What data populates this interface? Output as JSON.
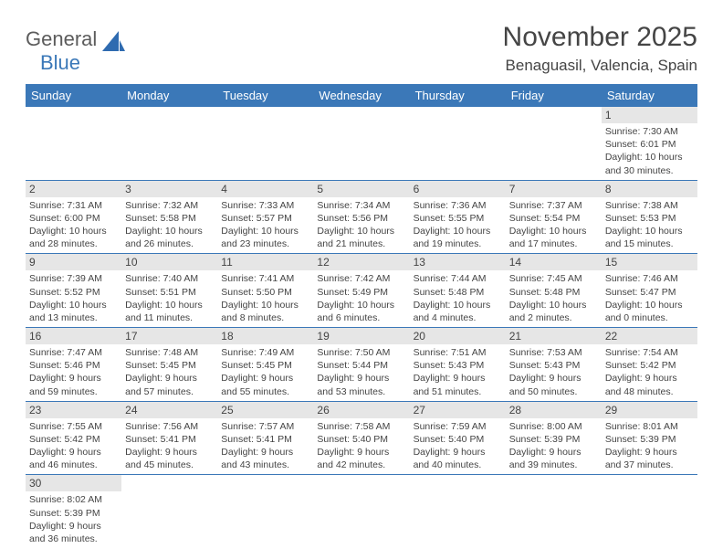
{
  "logo": {
    "general": "General",
    "blue": "Blue",
    "sail_color": "#2f6bb0"
  },
  "header": {
    "title": "November 2025",
    "location": "Benaguasil, Valencia, Spain"
  },
  "colors": {
    "header_bg": "#3b78b8",
    "header_text": "#ffffff",
    "daynum_bg": "#e6e6e6",
    "rule": "#3b78b8",
    "text": "#444444"
  },
  "weekdays": [
    "Sunday",
    "Monday",
    "Tuesday",
    "Wednesday",
    "Thursday",
    "Friday",
    "Saturday"
  ],
  "weeks": [
    [
      null,
      null,
      null,
      null,
      null,
      null,
      {
        "n": "1",
        "sr": "7:30 AM",
        "ss": "6:01 PM",
        "dh": "10",
        "dm": "30"
      }
    ],
    [
      {
        "n": "2",
        "sr": "7:31 AM",
        "ss": "6:00 PM",
        "dh": "10",
        "dm": "28"
      },
      {
        "n": "3",
        "sr": "7:32 AM",
        "ss": "5:58 PM",
        "dh": "10",
        "dm": "26"
      },
      {
        "n": "4",
        "sr": "7:33 AM",
        "ss": "5:57 PM",
        "dh": "10",
        "dm": "23"
      },
      {
        "n": "5",
        "sr": "7:34 AM",
        "ss": "5:56 PM",
        "dh": "10",
        "dm": "21"
      },
      {
        "n": "6",
        "sr": "7:36 AM",
        "ss": "5:55 PM",
        "dh": "10",
        "dm": "19"
      },
      {
        "n": "7",
        "sr": "7:37 AM",
        "ss": "5:54 PM",
        "dh": "10",
        "dm": "17"
      },
      {
        "n": "8",
        "sr": "7:38 AM",
        "ss": "5:53 PM",
        "dh": "10",
        "dm": "15"
      }
    ],
    [
      {
        "n": "9",
        "sr": "7:39 AM",
        "ss": "5:52 PM",
        "dh": "10",
        "dm": "13"
      },
      {
        "n": "10",
        "sr": "7:40 AM",
        "ss": "5:51 PM",
        "dh": "10",
        "dm": "11"
      },
      {
        "n": "11",
        "sr": "7:41 AM",
        "ss": "5:50 PM",
        "dh": "10",
        "dm": "8"
      },
      {
        "n": "12",
        "sr": "7:42 AM",
        "ss": "5:49 PM",
        "dh": "10",
        "dm": "6"
      },
      {
        "n": "13",
        "sr": "7:44 AM",
        "ss": "5:48 PM",
        "dh": "10",
        "dm": "4"
      },
      {
        "n": "14",
        "sr": "7:45 AM",
        "ss": "5:48 PM",
        "dh": "10",
        "dm": "2"
      },
      {
        "n": "15",
        "sr": "7:46 AM",
        "ss": "5:47 PM",
        "dh": "10",
        "dm": "0"
      }
    ],
    [
      {
        "n": "16",
        "sr": "7:47 AM",
        "ss": "5:46 PM",
        "dh": "9",
        "dm": "59"
      },
      {
        "n": "17",
        "sr": "7:48 AM",
        "ss": "5:45 PM",
        "dh": "9",
        "dm": "57"
      },
      {
        "n": "18",
        "sr": "7:49 AM",
        "ss": "5:45 PM",
        "dh": "9",
        "dm": "55"
      },
      {
        "n": "19",
        "sr": "7:50 AM",
        "ss": "5:44 PM",
        "dh": "9",
        "dm": "53"
      },
      {
        "n": "20",
        "sr": "7:51 AM",
        "ss": "5:43 PM",
        "dh": "9",
        "dm": "51"
      },
      {
        "n": "21",
        "sr": "7:53 AM",
        "ss": "5:43 PM",
        "dh": "9",
        "dm": "50"
      },
      {
        "n": "22",
        "sr": "7:54 AM",
        "ss": "5:42 PM",
        "dh": "9",
        "dm": "48"
      }
    ],
    [
      {
        "n": "23",
        "sr": "7:55 AM",
        "ss": "5:42 PM",
        "dh": "9",
        "dm": "46"
      },
      {
        "n": "24",
        "sr": "7:56 AM",
        "ss": "5:41 PM",
        "dh": "9",
        "dm": "45"
      },
      {
        "n": "25",
        "sr": "7:57 AM",
        "ss": "5:41 PM",
        "dh": "9",
        "dm": "43"
      },
      {
        "n": "26",
        "sr": "7:58 AM",
        "ss": "5:40 PM",
        "dh": "9",
        "dm": "42"
      },
      {
        "n": "27",
        "sr": "7:59 AM",
        "ss": "5:40 PM",
        "dh": "9",
        "dm": "40"
      },
      {
        "n": "28",
        "sr": "8:00 AM",
        "ss": "5:39 PM",
        "dh": "9",
        "dm": "39"
      },
      {
        "n": "29",
        "sr": "8:01 AM",
        "ss": "5:39 PM",
        "dh": "9",
        "dm": "37"
      }
    ],
    [
      {
        "n": "30",
        "sr": "8:02 AM",
        "ss": "5:39 PM",
        "dh": "9",
        "dm": "36"
      },
      null,
      null,
      null,
      null,
      null,
      null
    ]
  ],
  "labels": {
    "sunrise": "Sunrise: ",
    "sunset": "Sunset: ",
    "daylight": "Daylight: ",
    "hours": " hours",
    "and": "and ",
    "minutes": " minutes."
  }
}
